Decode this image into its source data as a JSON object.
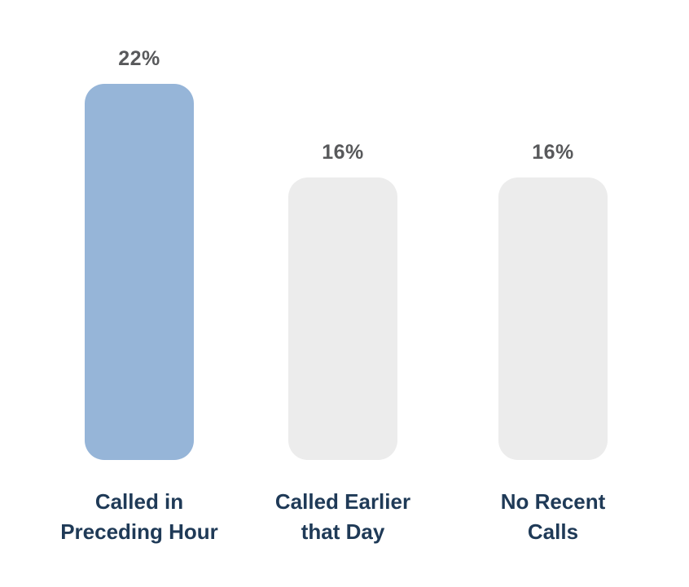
{
  "chart_data": {
    "type": "bar",
    "categories": [
      "Called in Preceding Hour",
      "Called Earlier that Day",
      "No Recent Calls"
    ],
    "values": [
      22,
      16,
      16
    ],
    "value_labels": [
      "22%",
      "16%",
      "16%"
    ],
    "unit": "%",
    "highlight_index": 0,
    "grid": false,
    "legend": false,
    "axes_visible": false,
    "colors": {
      "highlight_bar": "#96b5d8",
      "default_bar": "#ececec",
      "value_label": "#58595b",
      "category_label": "#1f3a57",
      "background": "#ffffff"
    }
  },
  "bars": [
    {
      "value_label": "22%",
      "label_lines": [
        "Called in",
        "Preceding Hour"
      ]
    },
    {
      "value_label": "16%",
      "label_lines": [
        "Called Earlier",
        "that Day"
      ]
    },
    {
      "value_label": "16%",
      "label_lines": [
        "No Recent",
        "Calls"
      ]
    }
  ]
}
